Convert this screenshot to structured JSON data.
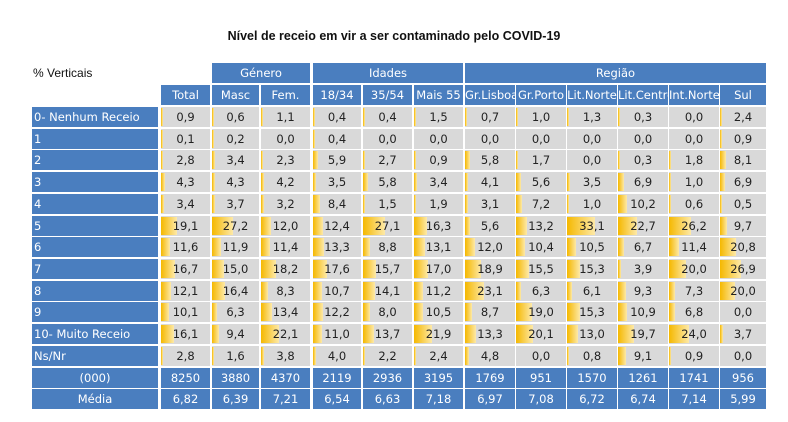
{
  "title": "Nível de receio em vir a ser contaminado pelo COVID-19",
  "corner_label": "% Verticais",
  "groups": [
    {
      "label": "Género",
      "span": [
        1,
        2
      ]
    },
    {
      "label": "Idades",
      "span": [
        3,
        5
      ]
    },
    {
      "label": "Região",
      "span": [
        6,
        11
      ]
    }
  ],
  "columns": [
    "Total",
    "Masc",
    "Fem.",
    "18/34",
    "35/54",
    "Mais 55",
    "Gr.Lisboa",
    "Gr.Porto",
    "Lit.Norte",
    "Lit.Centro",
    "Int.Norte",
    "Sul"
  ],
  "rows": [
    {
      "label": "0- Nenhum Receio",
      "values": [
        "0,9",
        "0,6",
        "1,1",
        "0,4",
        "0,4",
        "1,5",
        "0,7",
        "1,0",
        "1,3",
        "0,3",
        "0,0",
        "2,4"
      ]
    },
    {
      "label": "1",
      "values": [
        "0,1",
        "0,2",
        "0,0",
        "0,4",
        "0,0",
        "0,0",
        "0,0",
        "0,0",
        "0,0",
        "0,0",
        "0,0",
        "0,9"
      ]
    },
    {
      "label": "2",
      "values": [
        "2,8",
        "3,4",
        "2,3",
        "5,9",
        "2,7",
        "0,9",
        "5,8",
        "1,7",
        "0,0",
        "0,3",
        "1,8",
        "8,1"
      ]
    },
    {
      "label": "3",
      "values": [
        "4,3",
        "4,3",
        "4,2",
        "3,5",
        "5,8",
        "3,4",
        "4,1",
        "5,6",
        "3,5",
        "6,9",
        "1,0",
        "6,9"
      ]
    },
    {
      "label": "4",
      "values": [
        "3,4",
        "3,7",
        "3,2",
        "8,4",
        "1,5",
        "1,9",
        "3,1",
        "7,2",
        "1,0",
        "10,2",
        "0,6",
        "0,5"
      ]
    },
    {
      "label": "5",
      "values": [
        "19,1",
        "27,2",
        "12,0",
        "12,4",
        "27,1",
        "16,3",
        "5,6",
        "13,2",
        "33,1",
        "22,7",
        "26,2",
        "9,7"
      ]
    },
    {
      "label": "6",
      "values": [
        "11,6",
        "11,9",
        "11,4",
        "13,3",
        "8,8",
        "13,1",
        "12,0",
        "10,4",
        "10,5",
        "6,7",
        "11,4",
        "20,8"
      ]
    },
    {
      "label": "7",
      "values": [
        "16,7",
        "15,0",
        "18,2",
        "17,6",
        "15,7",
        "17,0",
        "18,9",
        "15,5",
        "15,3",
        "3,9",
        "20,0",
        "26,9"
      ]
    },
    {
      "label": "8",
      "values": [
        "12,1",
        "16,4",
        "8,3",
        "10,7",
        "14,1",
        "11,2",
        "23,1",
        "6,3",
        "6,1",
        "9,3",
        "7,3",
        "20,0"
      ]
    },
    {
      "label": "9",
      "values": [
        "10,1",
        "6,3",
        "13,4",
        "12,2",
        "8,0",
        "10,5",
        "8,7",
        "19,0",
        "15,3",
        "10,9",
        "6,8",
        "0,0"
      ]
    },
    {
      "label": "10- Muito Receio",
      "values": [
        "16,1",
        "9,4",
        "22,1",
        "11,0",
        "13,7",
        "21,9",
        "13,3",
        "20,1",
        "13,0",
        "19,7",
        "24,0",
        "3,7"
      ]
    },
    {
      "label": "Ns/Nr",
      "values": [
        "2,8",
        "1,6",
        "3,8",
        "4,0",
        "2,2",
        "2,4",
        "4,8",
        "0,0",
        "0,8",
        "9,1",
        "0,9",
        "0,0"
      ]
    }
  ],
  "footer_rows": [
    {
      "label": "(000)",
      "values": [
        "8250",
        "3880",
        "4370",
        "2119",
        "2936",
        "3195",
        "1769",
        "951",
        "1570",
        "1261",
        "1741",
        "956"
      ]
    },
    {
      "label": "Média",
      "values": [
        "6,82",
        "6,39",
        "7,21",
        "6,54",
        "6,63",
        "7,18",
        "6,97",
        "7,08",
        "6,72",
        "6,74",
        "7,14",
        "5,99"
      ]
    }
  ],
  "colors": {
    "header": "#4a7ebf",
    "cell": "#d9d9d9",
    "databar": "#f5b800"
  }
}
